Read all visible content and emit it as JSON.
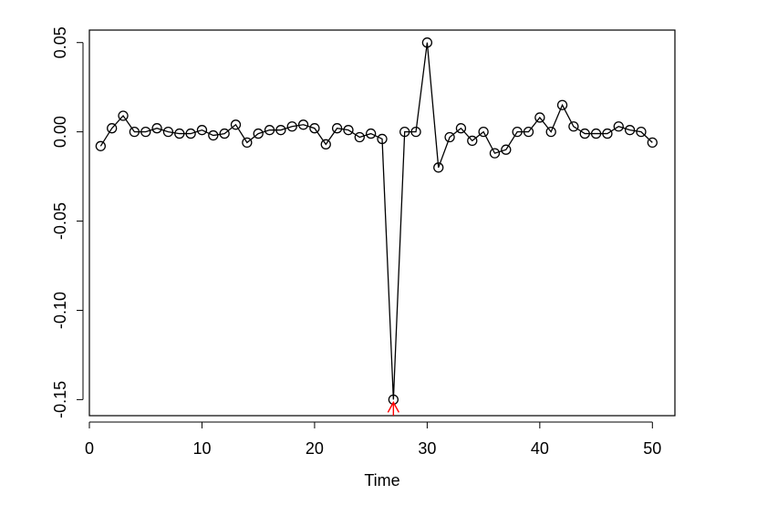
{
  "chart_data": {
    "type": "line",
    "title": "",
    "xlabel": "Time",
    "ylabel": "",
    "xlim": [
      0,
      52
    ],
    "ylim": [
      -0.159,
      0.057
    ],
    "x_ticks": [
      0,
      10,
      20,
      30,
      40,
      50
    ],
    "x_tick_labels": [
      "0",
      "10",
      "20",
      "30",
      "40",
      "50"
    ],
    "y_ticks": [
      0.05,
      0.0,
      -0.05,
      -0.1,
      -0.15
    ],
    "y_tick_labels": [
      "0.05",
      "0.00",
      "-0.05",
      "-0.10",
      "-0.15"
    ],
    "grid": false,
    "legend": "none",
    "marker": "open-circle",
    "series": [
      {
        "x": [
          1,
          2,
          3,
          4,
          5,
          6,
          7,
          8,
          9,
          10,
          11,
          12,
          13,
          14,
          15,
          16,
          17,
          18,
          19,
          20,
          21,
          22,
          23,
          24,
          25,
          26,
          27,
          28,
          29,
          30,
          31,
          32,
          33,
          34,
          35,
          36,
          37,
          38,
          39,
          40,
          41,
          42,
          43,
          44,
          45,
          46,
          47,
          48,
          49,
          50
        ],
        "values": [
          -0.008,
          0.002,
          0.009,
          0.0,
          0.0,
          0.002,
          0.0,
          -0.001,
          -0.001,
          0.001,
          -0.002,
          -0.001,
          0.004,
          -0.006,
          -0.001,
          0.001,
          0.001,
          0.003,
          0.004,
          0.002,
          -0.007,
          0.002,
          0.001,
          -0.003,
          -0.001,
          -0.004,
          -0.15,
          0.0,
          0.0,
          0.05,
          -0.02,
          -0.003,
          0.002,
          -0.005,
          0.0,
          -0.012,
          -0.01,
          0.0,
          0.0,
          0.008,
          0.0,
          0.015,
          0.003,
          -0.001,
          -0.001,
          -0.001,
          0.003,
          0.001,
          0.0,
          -0.006
        ],
        "color": "#000000"
      }
    ],
    "annotations": [
      {
        "type": "arrow",
        "x": 27,
        "y": -0.15,
        "color": "#ff0000"
      }
    ]
  }
}
